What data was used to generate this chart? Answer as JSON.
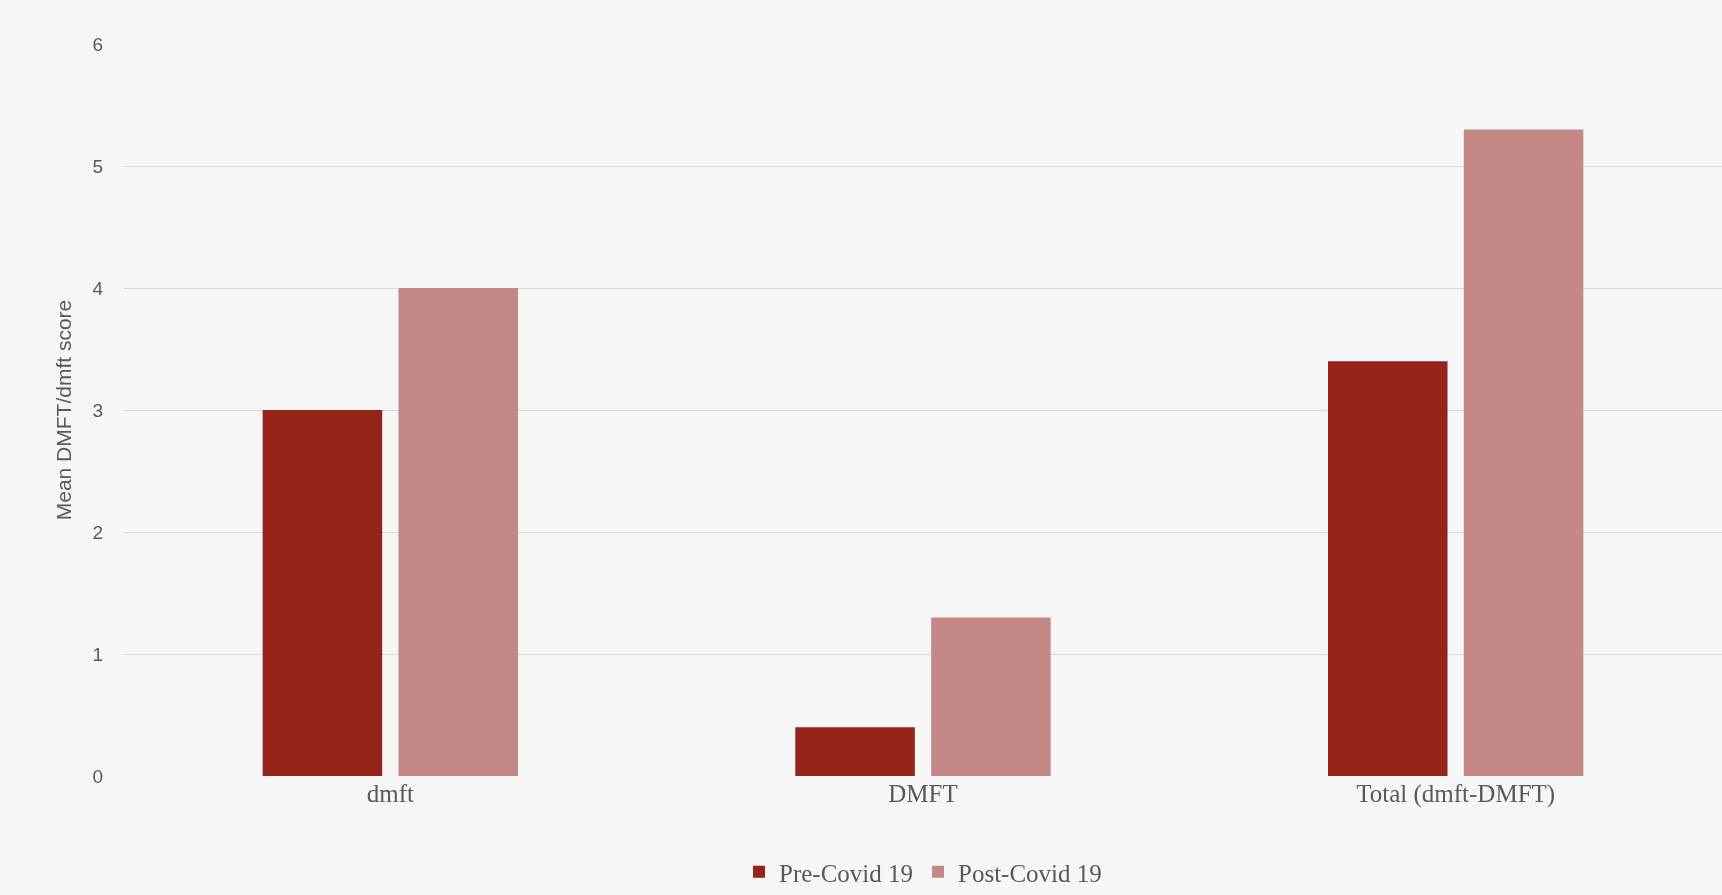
{
  "chart_data": {
    "type": "bar",
    "ylabel": "Mean DMFT/dmft score",
    "categories": [
      "dmft",
      "DMFT",
      "Total (dmft-DMFT)"
    ],
    "series": [
      {
        "name": "Pre-Covid 19",
        "color": "#952319",
        "values": [
          3,
          0.4,
          3.4
        ]
      },
      {
        "name": "Post-Covid 19",
        "color": "#c48986",
        "values": [
          4,
          1.3,
          5.3
        ]
      }
    ],
    "ylim": [
      0,
      6
    ],
    "yticks": [
      0,
      1,
      2,
      3,
      4,
      5,
      6
    ],
    "grid": "y",
    "legend": "bottom"
  }
}
